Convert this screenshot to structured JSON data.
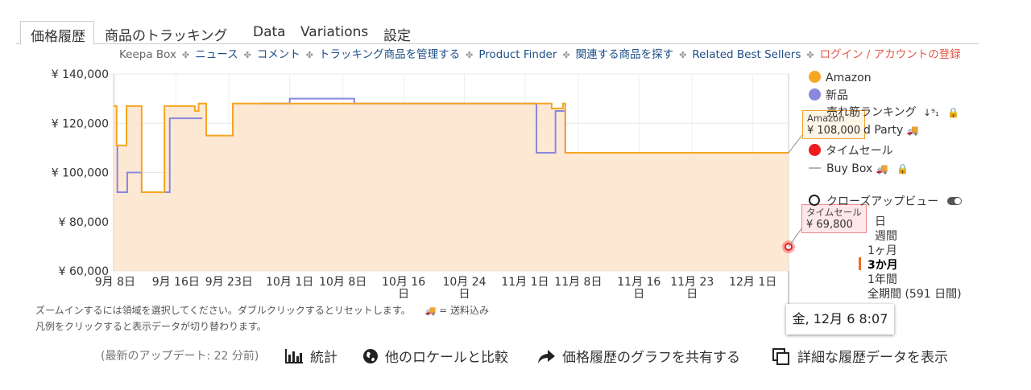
{
  "tabs": [
    "価格履歴",
    "商品のトラッキング",
    "Data",
    "Variations",
    "設定"
  ],
  "subnav": {
    "keepa_box": "Keepa Box",
    "separator": "✤",
    "links": [
      "ニュース",
      "コメント",
      "トラッキング商品を管理する",
      "Product Finder",
      "関連する商品を探す",
      "Related Best Sellers"
    ],
    "login": "ログイン / アカウントの登録"
  },
  "legend": {
    "amazon": "Amazon",
    "new": "新品",
    "sales_rank": "売れ筋ランキング",
    "third_party": "d Party",
    "lightning": "タイムセール",
    "buy_box": "Buy Box",
    "colors": {
      "amazon": "#f5a623",
      "new": "#8888dd",
      "lightning": "#ee1c1c",
      "buy_box": "#b5b5b5"
    }
  },
  "closeup": "クローズアップビュー",
  "ranges": [
    "日",
    "週間",
    "1ヶ月",
    "3か月",
    "1年間",
    "全期間 (591 日間)"
  ],
  "selected_range": "3か月",
  "notes": [
    "ズームインするには領域を選択してください。ダブルクリックするとリセットします。",
    "= 送料込み",
    "凡例をクリックすると表示データが切り替わります。"
  ],
  "tooltip_amazon": {
    "label": "Amazon",
    "value": "¥ 108,000"
  },
  "tooltip_lightning": {
    "label": "タイムセール",
    "value": "¥ 69,800"
  },
  "date_tooltip": "金, 12月 6 8:07",
  "footer": {
    "update": "(最新のアップデート: 22 分前)",
    "stats": "統計",
    "compare": "他のロケールと比較",
    "share": "価格履歴のグラフを共有する",
    "details": "詳細な履歴データを表示"
  },
  "chart_data": {
    "type": "line",
    "ylim": [
      60000,
      140000
    ],
    "yticks": [
      "¥ 140,000",
      "¥ 120,000",
      "¥ 100,000",
      "¥ 80,000",
      "¥ 60,000"
    ],
    "ytick_values": [
      140000,
      120000,
      100000,
      80000,
      60000
    ],
    "xticks": [
      {
        "label": "9月 8日",
        "day": 0
      },
      {
        "label": "9月 16日",
        "day": 8
      },
      {
        "label": "9月 23日",
        "day": 15
      },
      {
        "label": "10月 1日",
        "day": 23
      },
      {
        "label": "10月 8日",
        "day": 30
      },
      {
        "label": "10月 16 日",
        "day": 38
      },
      {
        "label": "10月 24 日",
        "day": 46
      },
      {
        "label": "11月 1日",
        "day": 54
      },
      {
        "label": "11月 8日",
        "day": 61
      },
      {
        "label": "11月 16 日",
        "day": 69
      },
      {
        "label": "11月 23 日",
        "day": 76
      },
      {
        "label": "12月 1日",
        "day": 84
      }
    ],
    "xlim_days": [
      -0.2,
      88.7
    ],
    "series": [
      {
        "name": "Amazon",
        "color": "#f5a623",
        "points": [
          [
            -0.2,
            127000
          ],
          [
            0.2,
            127000
          ],
          [
            0.2,
            111000
          ],
          [
            1.5,
            111000
          ],
          [
            1.5,
            127000
          ],
          [
            3.5,
            127000
          ],
          [
            3.5,
            92000
          ],
          [
            6.5,
            92000
          ],
          [
            6.5,
            127000
          ],
          [
            10.5,
            127000
          ],
          [
            10.5,
            125000
          ],
          [
            11,
            125000
          ],
          [
            11,
            128000
          ],
          [
            12,
            128000
          ],
          [
            12,
            115000
          ],
          [
            15.5,
            115000
          ],
          [
            15.5,
            128000
          ],
          [
            18,
            128000
          ],
          [
            18,
            128000
          ],
          [
            57.5,
            128000
          ],
          [
            57.5,
            126000
          ],
          [
            59,
            126000
          ],
          [
            59,
            128000
          ],
          [
            59.3,
            128000
          ],
          [
            59.3,
            108000
          ],
          [
            88.7,
            108000
          ]
        ]
      },
      {
        "name": "新品",
        "color": "#8888dd",
        "points": [
          [
            0.2,
            111000
          ],
          [
            0.3,
            111000
          ],
          [
            0.3,
            92000
          ],
          [
            1.6,
            92000
          ],
          [
            1.6,
            100000
          ],
          [
            3.5,
            100000
          ],
          [
            3.5,
            92000
          ],
          [
            7.2,
            92000
          ],
          [
            7.2,
            122000
          ],
          [
            11.5,
            122000
          ]
        ],
        "points2": [
          [
            19,
            128000
          ],
          [
            23,
            128000
          ],
          [
            23,
            130000
          ],
          [
            31.5,
            130000
          ],
          [
            31.5,
            128000
          ],
          [
            55.5,
            128000
          ],
          [
            55.5,
            108000
          ],
          [
            58,
            108000
          ],
          [
            58,
            125000
          ],
          [
            59.3,
            125000
          ],
          [
            59.3,
            108000
          ],
          [
            88.7,
            108000
          ]
        ]
      }
    ],
    "lightning_deal": {
      "day": 88.7,
      "value": 69800
    }
  }
}
